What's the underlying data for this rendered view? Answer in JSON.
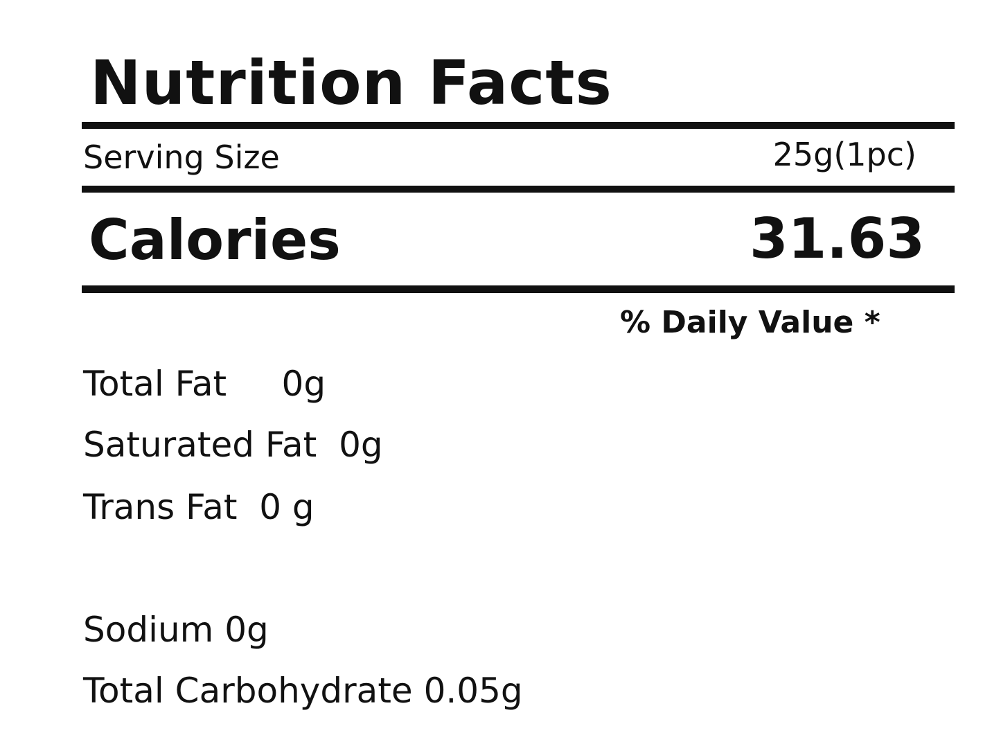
{
  "title": "Nutrition Facts",
  "serving_size": {
    "label": "Serving Size",
    "value": "25g(1pc)"
  },
  "calories": {
    "label": "Calories",
    "value": "31.63"
  },
  "daily_value_header": "% Daily Value *",
  "nutrients": [
    {
      "text": "Total Fat     0g"
    },
    {
      "text": "Saturated Fat  0g"
    },
    {
      "text": "Trans Fat  0 g"
    },
    {
      "text": "Sodium 0g"
    },
    {
      "text": "Total Carbohydrate 0.05g"
    }
  ]
}
